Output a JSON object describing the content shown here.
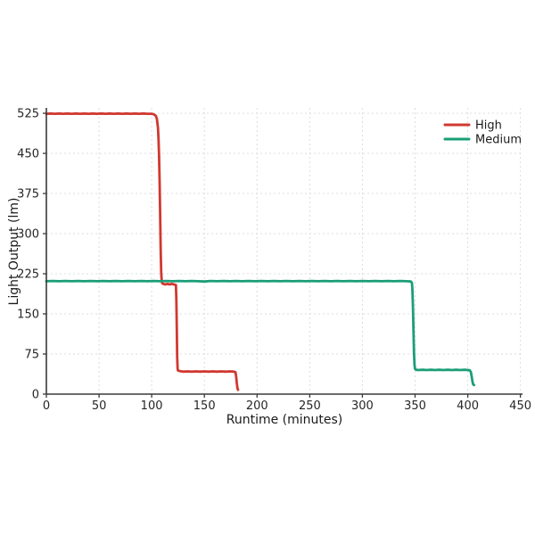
{
  "chart_data": {
    "type": "line",
    "title": "",
    "xlabel": "Runtime (minutes)",
    "ylabel": "Light Output (lm)",
    "xlim": [
      0,
      452
    ],
    "ylim": [
      0,
      535
    ],
    "xticks": [
      0,
      50,
      100,
      150,
      200,
      250,
      300,
      350,
      400,
      450
    ],
    "yticks": [
      0,
      75,
      150,
      225,
      300,
      375,
      450,
      525
    ],
    "grid": true,
    "grid_style": "dashed",
    "grid_color": "#dcdcdc",
    "legend_position": "upper right",
    "series": [
      {
        "name": "High",
        "color": "#d13830",
        "points": [
          [
            0,
            524
          ],
          [
            4,
            524.5
          ],
          [
            8,
            524
          ],
          [
            12,
            524.5
          ],
          [
            16,
            524
          ],
          [
            20,
            524.5
          ],
          [
            24,
            524
          ],
          [
            28,
            524.5
          ],
          [
            32,
            524
          ],
          [
            36,
            524.5
          ],
          [
            40,
            524
          ],
          [
            44,
            524.5
          ],
          [
            48,
            524
          ],
          [
            52,
            524.5
          ],
          [
            56,
            524
          ],
          [
            60,
            524.5
          ],
          [
            64,
            524
          ],
          [
            68,
            524.5
          ],
          [
            72,
            524
          ],
          [
            76,
            524.5
          ],
          [
            80,
            524
          ],
          [
            84,
            524.5
          ],
          [
            88,
            524
          ],
          [
            92,
            524.5
          ],
          [
            96,
            524
          ],
          [
            100,
            524
          ],
          [
            102,
            523
          ],
          [
            104,
            520
          ],
          [
            105,
            514
          ],
          [
            106,
            497
          ],
          [
            106.5,
            476
          ],
          [
            107,
            444
          ],
          [
            107.5,
            398
          ],
          [
            108,
            338
          ],
          [
            108.5,
            270
          ],
          [
            109,
            227
          ],
          [
            109.5,
            211
          ],
          [
            110,
            207
          ],
          [
            111,
            206
          ],
          [
            113,
            205
          ],
          [
            115,
            206
          ],
          [
            117,
            205
          ],
          [
            119,
            206
          ],
          [
            121,
            205
          ],
          [
            123,
            204
          ],
          [
            123.4,
            175
          ],
          [
            123.8,
            120
          ],
          [
            124.2,
            70
          ],
          [
            124.6,
            47
          ],
          [
            125,
            44
          ],
          [
            127,
            43
          ],
          [
            130,
            42
          ],
          [
            134,
            42.5
          ],
          [
            138,
            42
          ],
          [
            142,
            42.5
          ],
          [
            146,
            42
          ],
          [
            150,
            42.5
          ],
          [
            154,
            42
          ],
          [
            158,
            42.5
          ],
          [
            162,
            42
          ],
          [
            166,
            42.5
          ],
          [
            170,
            42
          ],
          [
            174,
            42.5
          ],
          [
            178,
            42
          ],
          [
            179.5,
            41
          ],
          [
            180.2,
            32
          ],
          [
            180.8,
            20
          ],
          [
            181.4,
            11
          ],
          [
            182,
            8
          ]
        ]
      },
      {
        "name": "Medium",
        "color": "#1b9e77",
        "points": [
          [
            0,
            211
          ],
          [
            6,
            211.5
          ],
          [
            12,
            211
          ],
          [
            18,
            211.5
          ],
          [
            24,
            211
          ],
          [
            30,
            211.5
          ],
          [
            36,
            211
          ],
          [
            42,
            211.5
          ],
          [
            48,
            211
          ],
          [
            54,
            211.5
          ],
          [
            60,
            211
          ],
          [
            66,
            211.5
          ],
          [
            72,
            211
          ],
          [
            78,
            211.5
          ],
          [
            84,
            211
          ],
          [
            90,
            211.5
          ],
          [
            96,
            211
          ],
          [
            102,
            211.5
          ],
          [
            108,
            211
          ],
          [
            114,
            211.5
          ],
          [
            120,
            211
          ],
          [
            126,
            211.5
          ],
          [
            132,
            211
          ],
          [
            138,
            211.5
          ],
          [
            144,
            211
          ],
          [
            150,
            210.5
          ],
          [
            156,
            211.5
          ],
          [
            162,
            211
          ],
          [
            168,
            211.5
          ],
          [
            174,
            211
          ],
          [
            180,
            211.5
          ],
          [
            186,
            211
          ],
          [
            192,
            211.5
          ],
          [
            198,
            211
          ],
          [
            204,
            211.5
          ],
          [
            210,
            211
          ],
          [
            216,
            211.5
          ],
          [
            222,
            211
          ],
          [
            228,
            211.5
          ],
          [
            234,
            211
          ],
          [
            240,
            211.5
          ],
          [
            246,
            211
          ],
          [
            252,
            211.5
          ],
          [
            258,
            211
          ],
          [
            264,
            211.5
          ],
          [
            270,
            211
          ],
          [
            276,
            211.5
          ],
          [
            282,
            211
          ],
          [
            288,
            211.5
          ],
          [
            294,
            211
          ],
          [
            300,
            211.5
          ],
          [
            306,
            211
          ],
          [
            312,
            211.5
          ],
          [
            318,
            211
          ],
          [
            324,
            211.5
          ],
          [
            330,
            211
          ],
          [
            336,
            211.5
          ],
          [
            342,
            211
          ],
          [
            346,
            210.5
          ],
          [
            347,
            208
          ],
          [
            347.5,
            196
          ],
          [
            348,
            165
          ],
          [
            348.5,
            120
          ],
          [
            349,
            78
          ],
          [
            349.5,
            54
          ],
          [
            350,
            47
          ],
          [
            351,
            45.5
          ],
          [
            353,
            45
          ],
          [
            357,
            45.5
          ],
          [
            361,
            45
          ],
          [
            365,
            45.5
          ],
          [
            369,
            45
          ],
          [
            373,
            45.5
          ],
          [
            377,
            45
          ],
          [
            381,
            45.5
          ],
          [
            385,
            45
          ],
          [
            389,
            45.5
          ],
          [
            393,
            45
          ],
          [
            397,
            45.5
          ],
          [
            400,
            45
          ],
          [
            402,
            44.5
          ],
          [
            403,
            41
          ],
          [
            403.8,
            32
          ],
          [
            404.5,
            23
          ],
          [
            405.2,
            18
          ],
          [
            406,
            17
          ]
        ]
      }
    ]
  },
  "legend": {
    "items": [
      {
        "label": "High"
      },
      {
        "label": "Medium"
      }
    ]
  }
}
